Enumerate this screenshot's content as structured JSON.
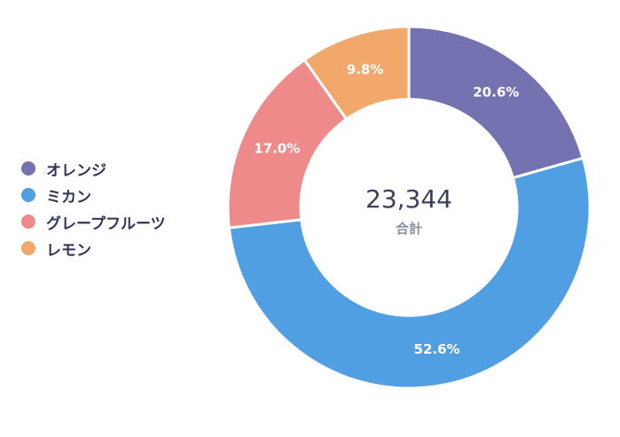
{
  "chart_data": {
    "type": "pie",
    "title": "",
    "categories": [
      "オレンジ",
      "ミカン",
      "グレープフルーツ",
      "レモン"
    ],
    "values": [
      20.6,
      52.6,
      17.0,
      9.8
    ],
    "value_labels": [
      "20.6%",
      "52.6%",
      "17.0%",
      "9.8%"
    ],
    "colors": [
      "#7472b0",
      "#519fe3",
      "#ee8a8a",
      "#f2a76b"
    ],
    "total_value": "23,344",
    "total_label": "合計",
    "legend_position": "left",
    "start_angle_deg": 0,
    "direction": "clockwise",
    "donut": true
  }
}
